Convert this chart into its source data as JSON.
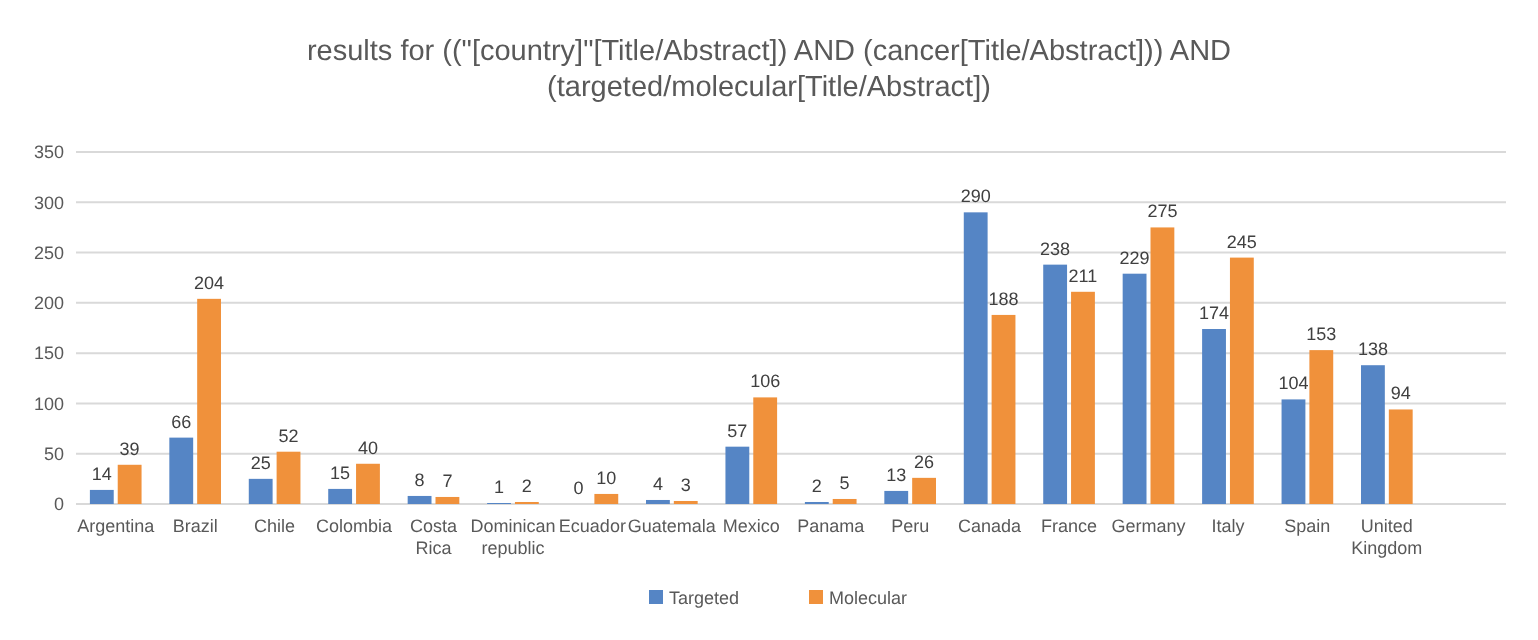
{
  "chart_data": {
    "type": "bar",
    "title": "results for ((\"[country]\"[Title/Abstract]) AND (cancer[Title/Abstract])) AND (targeted/molecular[Title/Abstract])",
    "categories": [
      "Argentina",
      "Brazil",
      "Chile",
      "Colombia",
      "Costa Rica",
      "Dominican republic",
      "Ecuador",
      "Guatemala",
      "Mexico",
      "Panama",
      "Peru",
      "Canada",
      "France",
      "Germany",
      "Italy",
      "Spain",
      "United Kingdom",
      null
    ],
    "series": [
      {
        "name": "Targeted",
        "color": "#5585c5",
        "values": [
          14,
          66,
          25,
          15,
          8,
          1,
          0,
          4,
          57,
          2,
          13,
          290,
          238,
          229,
          174,
          104,
          138,
          null
        ]
      },
      {
        "name": "Molecular",
        "color": "#f0913b",
        "values": [
          39,
          204,
          52,
          40,
          7,
          2,
          10,
          3,
          106,
          5,
          26,
          188,
          211,
          275,
          245,
          153,
          94,
          null
        ]
      }
    ],
    "ylim": [
      0,
      350
    ],
    "yticks": [
      0,
      50,
      100,
      150,
      200,
      250,
      300,
      350
    ],
    "grid": "y",
    "legend": "bottom",
    "data_labels": true
  }
}
